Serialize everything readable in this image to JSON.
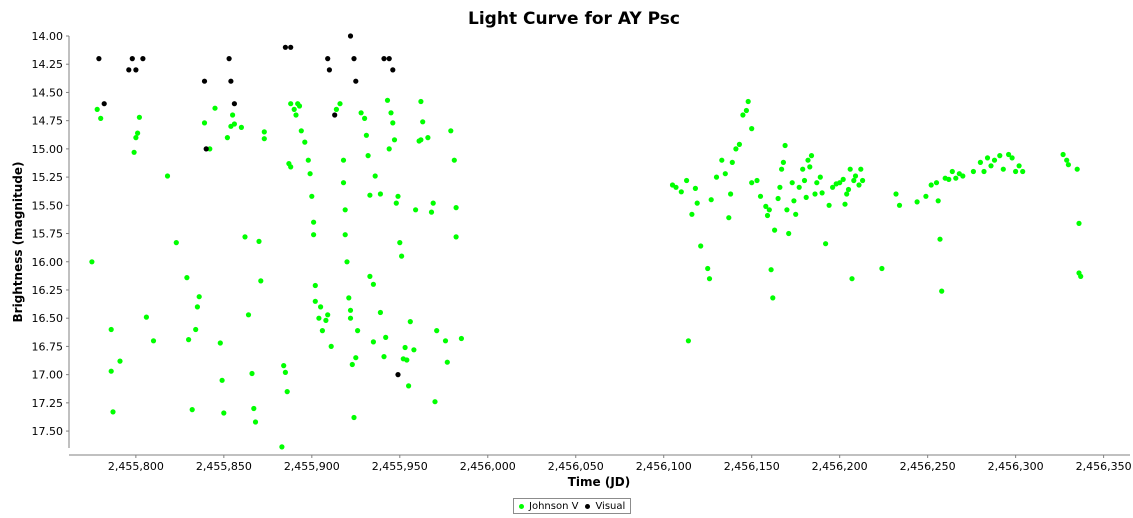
{
  "chart_data": {
    "type": "scatter",
    "title": "Light Curve for AY Psc",
    "xlabel": "Time (JD)",
    "ylabel": "Brightness (magnitude)",
    "xlim": [
      2455762,
      2456365
    ],
    "ylim": [
      17.65,
      14.0
    ],
    "y_inverted": true,
    "grid": false,
    "legend_position": "bottom-center",
    "x_ticks": [
      2455800,
      2455850,
      2455900,
      2455950,
      2456000,
      2456050,
      2456100,
      2456150,
      2456200,
      2456250,
      2456300,
      2456350
    ],
    "x_tick_labels": [
      "2,455,800",
      "2,455,850",
      "2,455,900",
      "2,455,950",
      "2,456,000",
      "2,456,050",
      "2,456,100",
      "2,456,150",
      "2,456,200",
      "2,456,250",
      "2,456,300",
      "2,456,350"
    ],
    "y_ticks": [
      14.0,
      14.25,
      14.5,
      14.75,
      15.0,
      15.25,
      15.5,
      15.75,
      16.0,
      16.25,
      16.5,
      16.75,
      17.0,
      17.25,
      17.5
    ],
    "y_tick_labels": [
      "14.00",
      "14.25",
      "14.50",
      "14.75",
      "15.00",
      "15.25",
      "15.50",
      "15.75",
      "16.00",
      "16.25",
      "16.50",
      "16.75",
      "17.00",
      "17.25",
      "17.50"
    ],
    "series": [
      {
        "name": "Johnson V",
        "color": "#00ff00",
        "points": [
          [
            2455775,
            16.0
          ],
          [
            2455778,
            14.65
          ],
          [
            2455780,
            14.73
          ],
          [
            2455786,
            16.6
          ],
          [
            2455786,
            16.97
          ],
          [
            2455787,
            17.33
          ],
          [
            2455791,
            16.88
          ],
          [
            2455799,
            15.03
          ],
          [
            2455800,
            14.9
          ],
          [
            2455801,
            14.86
          ],
          [
            2455802,
            14.72
          ],
          [
            2455806,
            16.49
          ],
          [
            2455810,
            16.7
          ],
          [
            2455818,
            15.24
          ],
          [
            2455823,
            15.83
          ],
          [
            2455829,
            16.14
          ],
          [
            2455830,
            16.69
          ],
          [
            2455832,
            17.31
          ],
          [
            2455834,
            16.6
          ],
          [
            2455835,
            16.4
          ],
          [
            2455836,
            16.31
          ],
          [
            2455839,
            14.77
          ],
          [
            2455842,
            15.0
          ],
          [
            2455845,
            14.64
          ],
          [
            2455848,
            16.72
          ],
          [
            2455849,
            17.05
          ],
          [
            2455850,
            17.34
          ],
          [
            2455852,
            14.9
          ],
          [
            2455854,
            14.8
          ],
          [
            2455855,
            14.7
          ],
          [
            2455856,
            14.78
          ],
          [
            2455860,
            14.81
          ],
          [
            2455862,
            15.78
          ],
          [
            2455864,
            16.47
          ],
          [
            2455866,
            16.99
          ],
          [
            2455867,
            17.3
          ],
          [
            2455868,
            17.42
          ],
          [
            2455870,
            15.82
          ],
          [
            2455871,
            16.17
          ],
          [
            2455873,
            14.91
          ],
          [
            2455873,
            14.85
          ],
          [
            2455883,
            17.64
          ],
          [
            2455884,
            16.92
          ],
          [
            2455885,
            16.98
          ],
          [
            2455886,
            17.15
          ],
          [
            2455887,
            15.13
          ],
          [
            2455888,
            15.16
          ],
          [
            2455888,
            14.6
          ],
          [
            2455890,
            14.65
          ],
          [
            2455891,
            14.7
          ],
          [
            2455892,
            14.6
          ],
          [
            2455893,
            14.62
          ],
          [
            2455894,
            14.84
          ],
          [
            2455896,
            14.94
          ],
          [
            2455898,
            15.1
          ],
          [
            2455899,
            15.22
          ],
          [
            2455900,
            15.42
          ],
          [
            2455901,
            15.65
          ],
          [
            2455901,
            15.76
          ],
          [
            2455902,
            16.21
          ],
          [
            2455902,
            16.35
          ],
          [
            2455904,
            16.5
          ],
          [
            2455905,
            16.4
          ],
          [
            2455906,
            16.61
          ],
          [
            2455908,
            16.52
          ],
          [
            2455909,
            16.47
          ],
          [
            2455911,
            16.75
          ],
          [
            2455914,
            14.65
          ],
          [
            2455916,
            14.6
          ],
          [
            2455918,
            15.1
          ],
          [
            2455918,
            15.3
          ],
          [
            2455919,
            15.54
          ],
          [
            2455919,
            15.76
          ],
          [
            2455920,
            16.0
          ],
          [
            2455921,
            16.32
          ],
          [
            2455922,
            16.43
          ],
          [
            2455922,
            16.5
          ],
          [
            2455923,
            16.91
          ],
          [
            2455924,
            17.38
          ],
          [
            2455925,
            16.85
          ],
          [
            2455926,
            16.61
          ],
          [
            2455928,
            14.68
          ],
          [
            2455930,
            14.73
          ],
          [
            2455931,
            14.88
          ],
          [
            2455932,
            15.06
          ],
          [
            2455933,
            15.41
          ],
          [
            2455933,
            16.13
          ],
          [
            2455935,
            16.2
          ],
          [
            2455935,
            16.71
          ],
          [
            2455936,
            15.24
          ],
          [
            2455939,
            15.4
          ],
          [
            2455939,
            16.45
          ],
          [
            2455941,
            16.84
          ],
          [
            2455942,
            16.67
          ],
          [
            2455943,
            14.57
          ],
          [
            2455944,
            15.0
          ],
          [
            2455945,
            14.68
          ],
          [
            2455946,
            14.77
          ],
          [
            2455947,
            14.92
          ],
          [
            2455948,
            15.48
          ],
          [
            2455949,
            15.42
          ],
          [
            2455950,
            15.83
          ],
          [
            2455951,
            15.95
          ],
          [
            2455952,
            16.86
          ],
          [
            2455953,
            16.76
          ],
          [
            2455954,
            16.87
          ],
          [
            2455955,
            17.1
          ],
          [
            2455956,
            16.53
          ],
          [
            2455958,
            16.78
          ],
          [
            2455959,
            15.54
          ],
          [
            2455961,
            14.93
          ],
          [
            2455962,
            14.58
          ],
          [
            2455962,
            14.92
          ],
          [
            2455963,
            14.76
          ],
          [
            2455966,
            14.9
          ],
          [
            2455968,
            15.56
          ],
          [
            2455969,
            15.48
          ],
          [
            2455970,
            17.24
          ],
          [
            2455971,
            16.61
          ],
          [
            2455976,
            16.7
          ],
          [
            2455977,
            16.89
          ],
          [
            2455979,
            14.84
          ],
          [
            2455981,
            15.1
          ],
          [
            2455982,
            15.52
          ],
          [
            2455982,
            15.78
          ],
          [
            2455985,
            16.68
          ],
          [
            2456105,
            15.32
          ],
          [
            2456107,
            15.34
          ],
          [
            2456110,
            15.38
          ],
          [
            2456113,
            15.28
          ],
          [
            2456114,
            16.7
          ],
          [
            2456116,
            15.58
          ],
          [
            2456118,
            15.35
          ],
          [
            2456119,
            15.48
          ],
          [
            2456121,
            15.86
          ],
          [
            2456125,
            16.06
          ],
          [
            2456126,
            16.15
          ],
          [
            2456127,
            15.45
          ],
          [
            2456130,
            15.25
          ],
          [
            2456133,
            15.1
          ],
          [
            2456135,
            15.22
          ],
          [
            2456137,
            15.61
          ],
          [
            2456138,
            15.4
          ],
          [
            2456139,
            15.12
          ],
          [
            2456141,
            15.0
          ],
          [
            2456143,
            14.96
          ],
          [
            2456145,
            14.7
          ],
          [
            2456147,
            14.66
          ],
          [
            2456148,
            14.58
          ],
          [
            2456150,
            14.82
          ],
          [
            2456150,
            15.3
          ],
          [
            2456153,
            15.28
          ],
          [
            2456155,
            15.42
          ],
          [
            2456158,
            15.51
          ],
          [
            2456159,
            15.59
          ],
          [
            2456160,
            15.54
          ],
          [
            2456161,
            16.07
          ],
          [
            2456162,
            16.32
          ],
          [
            2456163,
            15.72
          ],
          [
            2456165,
            15.44
          ],
          [
            2456166,
            15.34
          ],
          [
            2456167,
            15.18
          ],
          [
            2456168,
            15.12
          ],
          [
            2456169,
            14.97
          ],
          [
            2456170,
            15.54
          ],
          [
            2456171,
            15.75
          ],
          [
            2456173,
            15.3
          ],
          [
            2456174,
            15.46
          ],
          [
            2456175,
            15.58
          ],
          [
            2456177,
            15.34
          ],
          [
            2456179,
            15.18
          ],
          [
            2456180,
            15.28
          ],
          [
            2456181,
            15.43
          ],
          [
            2456182,
            15.1
          ],
          [
            2456183,
            15.16
          ],
          [
            2456184,
            15.06
          ],
          [
            2456186,
            15.4
          ],
          [
            2456187,
            15.3
          ],
          [
            2456189,
            15.25
          ],
          [
            2456190,
            15.39
          ],
          [
            2456192,
            15.84
          ],
          [
            2456194,
            15.5
          ],
          [
            2456196,
            15.34
          ],
          [
            2456198,
            15.31
          ],
          [
            2456200,
            15.3
          ],
          [
            2456202,
            15.27
          ],
          [
            2456203,
            15.49
          ],
          [
            2456204,
            15.4
          ],
          [
            2456205,
            15.36
          ],
          [
            2456206,
            15.18
          ],
          [
            2456207,
            16.15
          ],
          [
            2456208,
            15.28
          ],
          [
            2456209,
            15.24
          ],
          [
            2456211,
            15.32
          ],
          [
            2456212,
            15.18
          ],
          [
            2456213,
            15.28
          ],
          [
            2456224,
            16.06
          ],
          [
            2456232,
            15.4
          ],
          [
            2456234,
            15.5
          ],
          [
            2456244,
            15.47
          ],
          [
            2456249,
            15.42
          ],
          [
            2456252,
            15.32
          ],
          [
            2456255,
            15.3
          ],
          [
            2456256,
            15.46
          ],
          [
            2456257,
            15.8
          ],
          [
            2456258,
            16.26
          ],
          [
            2456260,
            15.26
          ],
          [
            2456262,
            15.27
          ],
          [
            2456264,
            15.2
          ],
          [
            2456266,
            15.26
          ],
          [
            2456268,
            15.22
          ],
          [
            2456270,
            15.24
          ],
          [
            2456276,
            15.2
          ],
          [
            2456280,
            15.12
          ],
          [
            2456282,
            15.2
          ],
          [
            2456284,
            15.08
          ],
          [
            2456286,
            15.15
          ],
          [
            2456288,
            15.1
          ],
          [
            2456291,
            15.06
          ],
          [
            2456293,
            15.18
          ],
          [
            2456296,
            15.05
          ],
          [
            2456298,
            15.08
          ],
          [
            2456300,
            15.2
          ],
          [
            2456302,
            15.15
          ],
          [
            2456304,
            15.2
          ],
          [
            2456327,
            15.05
          ],
          [
            2456329,
            15.1
          ],
          [
            2456330,
            15.14
          ],
          [
            2456335,
            15.18
          ],
          [
            2456336,
            15.66
          ],
          [
            2456336,
            16.1
          ],
          [
            2456337,
            16.13
          ]
        ]
      },
      {
        "name": "Visual",
        "color": "#000000",
        "points": [
          [
            2455779,
            14.2
          ],
          [
            2455782,
            14.6
          ],
          [
            2455796,
            14.3
          ],
          [
            2455798,
            14.2
          ],
          [
            2455800,
            14.3
          ],
          [
            2455804,
            14.2
          ],
          [
            2455839,
            14.4
          ],
          [
            2455840,
            15.0
          ],
          [
            2455853,
            14.2
          ],
          [
            2455854,
            14.4
          ],
          [
            2455856,
            14.6
          ],
          [
            2455885,
            14.1
          ],
          [
            2455888,
            14.1
          ],
          [
            2455909,
            14.2
          ],
          [
            2455910,
            14.3
          ],
          [
            2455913,
            14.7
          ],
          [
            2455922,
            14.0
          ],
          [
            2455924,
            14.2
          ],
          [
            2455925,
            14.4
          ],
          [
            2455941,
            14.2
          ],
          [
            2455944,
            14.2
          ],
          [
            2455946,
            14.3
          ],
          [
            2455949,
            17.0
          ]
        ]
      }
    ]
  }
}
